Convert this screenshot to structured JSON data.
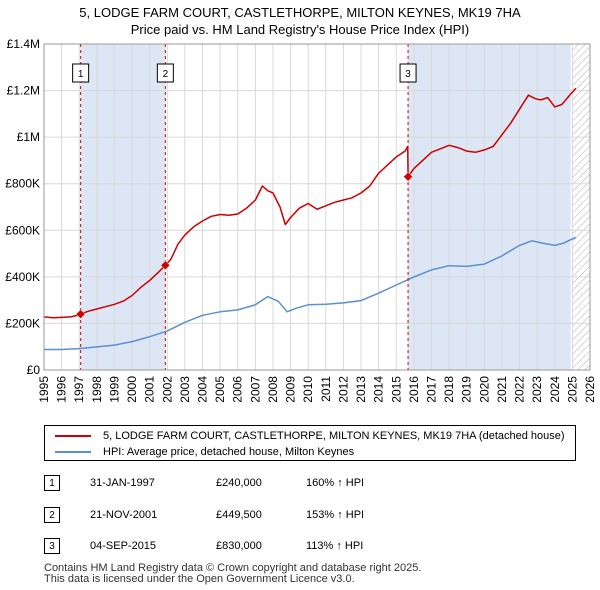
{
  "header": {
    "title_line1": "5, LODGE FARM COURT, CASTLETHORPE, MILTON KEYNES, MK19 7HA",
    "title_line2": "Price paid vs. HM Land Registry's House Price Index (HPI)"
  },
  "colors": {
    "property": "#cc0000",
    "hpi": "#5b8fd0",
    "shade": "#dde6f5",
    "grid": "#d9d9d9",
    "marker_line": "#cc0000"
  },
  "chart_data": {
    "type": "line",
    "x_range": [
      1995,
      2026
    ],
    "ylim": [
      0,
      1400000
    ],
    "y_ticks": [
      {
        "value": 0,
        "label": "£0"
      },
      {
        "value": 200000,
        "label": "£200K"
      },
      {
        "value": 400000,
        "label": "£400K"
      },
      {
        "value": 600000,
        "label": "£600K"
      },
      {
        "value": 800000,
        "label": "£800K"
      },
      {
        "value": 1000000,
        "label": "£1M"
      },
      {
        "value": 1200000,
        "label": "£1.2M"
      },
      {
        "value": 1400000,
        "label": "£1.4M"
      }
    ],
    "x_ticks": [
      "1995",
      "1996",
      "1997",
      "1998",
      "1999",
      "2000",
      "2001",
      "2002",
      "2003",
      "2004",
      "2005",
      "2006",
      "2007",
      "2008",
      "2009",
      "2010",
      "2011",
      "2012",
      "2013",
      "2014",
      "2015",
      "2016",
      "2017",
      "2018",
      "2019",
      "2020",
      "2021",
      "2022",
      "2023",
      "2024",
      "2025",
      "2026"
    ],
    "shaded_ranges": [
      [
        1997.08,
        2001.89
      ],
      [
        2015.67,
        2024.9
      ]
    ],
    "hatch_from": 2025.0,
    "series": [
      {
        "name": "5, LODGE FARM COURT, CASTLETHORPE, MILTON KEYNES, MK19 7HA (detached house)",
        "color": "#cc0000",
        "points": [
          [
            1995.0,
            228000
          ],
          [
            1995.5,
            224000
          ],
          [
            1996.0,
            226000
          ],
          [
            1996.5,
            228000
          ],
          [
            1997.0,
            236000
          ],
          [
            1997.08,
            240000
          ],
          [
            1997.5,
            252000
          ],
          [
            1998.0,
            262000
          ],
          [
            1998.5,
            272000
          ],
          [
            1999.0,
            282000
          ],
          [
            1999.5,
            296000
          ],
          [
            2000.0,
            320000
          ],
          [
            2000.5,
            355000
          ],
          [
            2001.0,
            385000
          ],
          [
            2001.5,
            420000
          ],
          [
            2001.89,
            449500
          ],
          [
            2002.2,
            475000
          ],
          [
            2002.6,
            540000
          ],
          [
            2003.0,
            580000
          ],
          [
            2003.5,
            615000
          ],
          [
            2004.0,
            640000
          ],
          [
            2004.5,
            660000
          ],
          [
            2005.0,
            668000
          ],
          [
            2005.5,
            665000
          ],
          [
            2006.0,
            670000
          ],
          [
            2006.5,
            695000
          ],
          [
            2007.0,
            730000
          ],
          [
            2007.4,
            790000
          ],
          [
            2007.7,
            770000
          ],
          [
            2008.0,
            760000
          ],
          [
            2008.4,
            700000
          ],
          [
            2008.7,
            625000
          ],
          [
            2009.0,
            655000
          ],
          [
            2009.5,
            695000
          ],
          [
            2010.0,
            715000
          ],
          [
            2010.5,
            690000
          ],
          [
            2011.0,
            705000
          ],
          [
            2011.5,
            720000
          ],
          [
            2012.0,
            730000
          ],
          [
            2012.5,
            740000
          ],
          [
            2013.0,
            760000
          ],
          [
            2013.5,
            790000
          ],
          [
            2014.0,
            845000
          ],
          [
            2014.5,
            880000
          ],
          [
            2015.0,
            915000
          ],
          [
            2015.5,
            940000
          ],
          [
            2015.65,
            960000
          ],
          [
            2015.67,
            830000
          ],
          [
            2016.0,
            865000
          ],
          [
            2016.5,
            900000
          ],
          [
            2017.0,
            935000
          ],
          [
            2017.5,
            950000
          ],
          [
            2018.0,
            965000
          ],
          [
            2018.5,
            955000
          ],
          [
            2019.0,
            940000
          ],
          [
            2019.5,
            935000
          ],
          [
            2020.0,
            945000
          ],
          [
            2020.5,
            960000
          ],
          [
            2021.0,
            1010000
          ],
          [
            2021.5,
            1060000
          ],
          [
            2022.0,
            1120000
          ],
          [
            2022.5,
            1180000
          ],
          [
            2022.9,
            1165000
          ],
          [
            2023.2,
            1160000
          ],
          [
            2023.6,
            1170000
          ],
          [
            2024.0,
            1130000
          ],
          [
            2024.4,
            1140000
          ],
          [
            2024.9,
            1185000
          ],
          [
            2025.2,
            1210000
          ]
        ]
      },
      {
        "name": "HPI: Average price, detached house, Milton Keynes",
        "color": "#5b8fd0",
        "points": [
          [
            1995.0,
            88000
          ],
          [
            1996.0,
            88000
          ],
          [
            1997.0,
            92000
          ],
          [
            1998.0,
            99000
          ],
          [
            1999.0,
            107000
          ],
          [
            2000.0,
            122000
          ],
          [
            2001.0,
            143000
          ],
          [
            2002.0,
            168000
          ],
          [
            2003.0,
            205000
          ],
          [
            2004.0,
            235000
          ],
          [
            2005.0,
            250000
          ],
          [
            2006.0,
            258000
          ],
          [
            2007.0,
            280000
          ],
          [
            2007.7,
            315000
          ],
          [
            2008.3,
            295000
          ],
          [
            2008.8,
            250000
          ],
          [
            2009.3,
            265000
          ],
          [
            2010.0,
            280000
          ],
          [
            2011.0,
            282000
          ],
          [
            2012.0,
            288000
          ],
          [
            2013.0,
            298000
          ],
          [
            2014.0,
            330000
          ],
          [
            2015.0,
            365000
          ],
          [
            2016.0,
            400000
          ],
          [
            2017.0,
            430000
          ],
          [
            2018.0,
            448000
          ],
          [
            2019.0,
            445000
          ],
          [
            2020.0,
            455000
          ],
          [
            2021.0,
            490000
          ],
          [
            2022.0,
            535000
          ],
          [
            2022.7,
            555000
          ],
          [
            2023.3,
            545000
          ],
          [
            2024.0,
            535000
          ],
          [
            2024.5,
            545000
          ],
          [
            2025.2,
            570000
          ]
        ]
      }
    ],
    "markers": [
      {
        "label": "1",
        "x": 1997.08,
        "y": 240000
      },
      {
        "label": "2",
        "x": 2001.89,
        "y": 449500
      },
      {
        "label": "3",
        "x": 2015.67,
        "y": 830000
      }
    ]
  },
  "legend": {
    "property_label": "5, LODGE FARM COURT, CASTLETHORPE, MILTON KEYNES, MK19 7HA (detached house)",
    "hpi_label": "HPI: Average price, detached house, Milton Keynes"
  },
  "transactions": [
    {
      "num": "1",
      "date": "31-JAN-1997",
      "price": "£240,000",
      "hpi": "160% ↑ HPI"
    },
    {
      "num": "2",
      "date": "21-NOV-2001",
      "price": "£449,500",
      "hpi": "153% ↑ HPI"
    },
    {
      "num": "3",
      "date": "04-SEP-2015",
      "price": "£830,000",
      "hpi": "113% ↑ HPI"
    }
  ],
  "footer": {
    "line1": "Contains HM Land Registry data © Crown copyright and database right 2025.",
    "line2": "This data is licensed under the Open Government Licence v3.0."
  }
}
